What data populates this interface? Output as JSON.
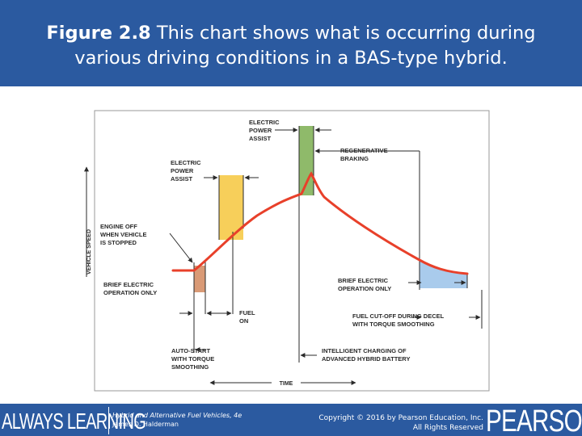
{
  "header": {
    "figure_label": "Figure 2.8",
    "caption_line1": "This chart shows what is occurring during",
    "caption_line2": "various driving conditions in a BAS-type hybrid."
  },
  "diagram": {
    "axis_y_label": "VEHICLE SPEED",
    "axis_x_label": "TIME",
    "labels": {
      "electric_power_assist_top": [
        "ELECTRIC",
        "POWER",
        "ASSIST"
      ],
      "regenerative_braking": [
        "REGENERATIVE",
        "BRAKING"
      ],
      "electric_power_assist_left": [
        "ELECTRIC",
        "POWER",
        "ASSIST"
      ],
      "engine_off": [
        "ENGINE OFF",
        "WHEN VEHICLE",
        "IS STOPPED"
      ],
      "brief_electric_left": [
        "BRIEF ELECTRIC",
        "OPERATION ONLY"
      ],
      "brief_electric_right": [
        "BRIEF ELECTRIC",
        "OPERATION ONLY"
      ],
      "fuel_on": [
        "FUEL",
        "ON"
      ],
      "fuel_cutoff": [
        "FUEL CUT-OFF DURING DECEL",
        "WITH TORQUE SMOOTHING"
      ],
      "auto_start": [
        "AUTO-START",
        "WITH TORQUE",
        "SMOOTHING"
      ],
      "intelligent_charging": [
        "INTELLIGENT CHARGING OF",
        "ADVANCED HYBRID BATTERY"
      ]
    },
    "colors": {
      "speed_curve": "#e8402a",
      "power_assist_fill": "#f7cf5a",
      "regen_fill": "#8fba6a",
      "brief_electric_left_fill": "#d99a76",
      "brief_electric_right_fill": "#a9cbec"
    }
  },
  "footer": {
    "brand_left": "ALWAYS LEARNING",
    "book_title": "Hybrid and Alternative Fuel Vehicles, 4e",
    "book_author": "James D. Halderman",
    "copyright_line1": "Copyright © 2016 by Pearson Education, Inc.",
    "copyright_line2": "All Rights Reserved",
    "brand_right": "PEARSON"
  }
}
